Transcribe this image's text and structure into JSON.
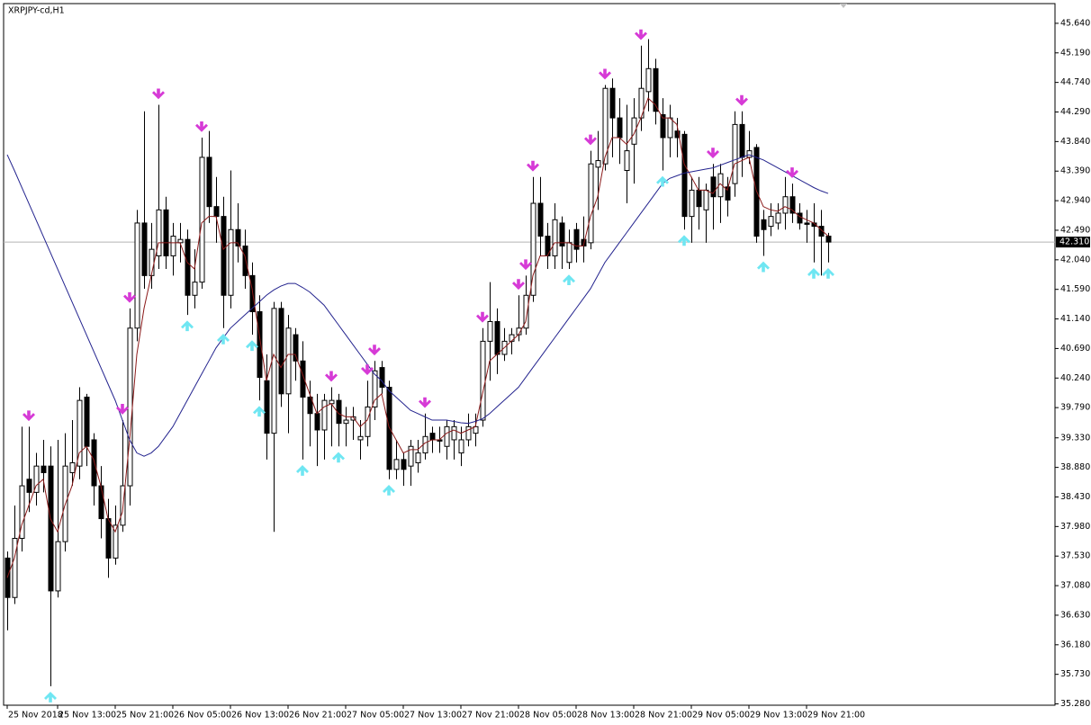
{
  "chart_data": {
    "type": "candlestick",
    "title": "XRPJPY-cd,H1",
    "xlim": [
      -0.5,
      145.5
    ],
    "ylim": [
      35.26,
      45.94
    ],
    "yticks": [
      {
        "value": 45.64,
        "label": "45.640"
      },
      {
        "value": 45.19,
        "label": "45.190"
      },
      {
        "value": 44.74,
        "label": "44.740"
      },
      {
        "value": 44.29,
        "label": "44.290"
      },
      {
        "value": 43.84,
        "label": "43.840"
      },
      {
        "value": 43.39,
        "label": "43.390"
      },
      {
        "value": 42.94,
        "label": "42.940"
      },
      {
        "value": 42.49,
        "label": "42.490"
      },
      {
        "value": 42.04,
        "label": "42.040"
      },
      {
        "value": 41.59,
        "label": "41.590"
      },
      {
        "value": 41.14,
        "label": "41.140"
      },
      {
        "value": 40.69,
        "label": "40.690"
      },
      {
        "value": 40.24,
        "label": "40.240"
      },
      {
        "value": 39.79,
        "label": "39.790"
      },
      {
        "value": 39.33,
        "label": "39.330"
      },
      {
        "value": 38.88,
        "label": "38.880"
      },
      {
        "value": 38.43,
        "label": "38.430"
      },
      {
        "value": 37.98,
        "label": "37.980"
      },
      {
        "value": 37.53,
        "label": "37.530"
      },
      {
        "value": 37.08,
        "label": "37.080"
      },
      {
        "value": 36.63,
        "label": "36.630"
      },
      {
        "value": 36.18,
        "label": "36.180"
      },
      {
        "value": 35.73,
        "label": "35.730"
      },
      {
        "value": 35.28,
        "label": "35.280"
      }
    ],
    "xticks": [
      {
        "value": 0,
        "label": "25 Nov 2018"
      },
      {
        "value": 7,
        "label": "25 Nov 13:00"
      },
      {
        "value": 15,
        "label": "25 Nov 21:00"
      },
      {
        "value": 23,
        "label": "26 Nov 05:00"
      },
      {
        "value": 31,
        "label": "26 Nov 13:00"
      },
      {
        "value": 39,
        "label": "26 Nov 21:00"
      },
      {
        "value": 47,
        "label": "27 Nov 05:00"
      },
      {
        "value": 55,
        "label": "27 Nov 13:00"
      },
      {
        "value": 63,
        "label": "27 Nov 21:00"
      },
      {
        "value": 71,
        "label": "28 Nov 05:00"
      },
      {
        "value": 79,
        "label": "28 Nov 13:00"
      },
      {
        "value": 87,
        "label": "28 Nov 21:00"
      },
      {
        "value": 95,
        "label": "29 Nov 05:00"
      },
      {
        "value": 103,
        "label": "29 Nov 13:00"
      },
      {
        "value": 111,
        "label": "29 Nov 21:00"
      }
    ],
    "current_price": {
      "value": 42.31,
      "label": "42.310"
    },
    "bull_color": "#ffffff",
    "bear_color": "#000000",
    "candles": [
      [
        37.5,
        37.6,
        36.4,
        36.9
      ],
      [
        36.9,
        38.3,
        36.8,
        37.8
      ],
      [
        37.8,
        39.5,
        37.6,
        38.6
      ],
      [
        38.7,
        39.5,
        38.2,
        38.5
      ],
      [
        38.5,
        39.1,
        38.3,
        38.9
      ],
      [
        38.9,
        39.3,
        38.5,
        38.8
      ],
      [
        38.9,
        39.2,
        35.55,
        37.0
      ],
      [
        37.0,
        39.3,
        36.9,
        37.75
      ],
      [
        37.75,
        39.4,
        37.6,
        38.9
      ],
      [
        38.8,
        39.6,
        38.6,
        38.95
      ],
      [
        38.9,
        40.1,
        38.7,
        39.9
      ],
      [
        39.95,
        40.0,
        38.9,
        39.2
      ],
      [
        39.3,
        39.4,
        38.3,
        38.6
      ],
      [
        38.6,
        38.9,
        37.8,
        38.1
      ],
      [
        38.1,
        38.4,
        37.2,
        37.5
      ],
      [
        37.5,
        38.3,
        37.4,
        38.0
      ],
      [
        38.0,
        39.6,
        37.9,
        38.6
      ],
      [
        38.6,
        41.3,
        38.3,
        41.0
      ],
      [
        41.0,
        42.8,
        40.8,
        42.6
      ],
      [
        42.6,
        44.3,
        41.6,
        41.8
      ],
      [
        41.8,
        42.6,
        41.6,
        42.2
      ],
      [
        42.1,
        44.4,
        41.9,
        42.8
      ],
      [
        42.8,
        43.0,
        41.9,
        42.1
      ],
      [
        42.1,
        42.6,
        41.8,
        42.4
      ],
      [
        42.3,
        42.6,
        42.0,
        42.35
      ],
      [
        42.35,
        42.5,
        41.2,
        41.5
      ],
      [
        41.5,
        42.2,
        41.3,
        41.7
      ],
      [
        41.7,
        43.9,
        41.6,
        43.6
      ],
      [
        43.6,
        44.0,
        42.6,
        42.85
      ],
      [
        42.85,
        43.3,
        42.3,
        42.7
      ],
      [
        42.7,
        43.0,
        41.0,
        41.5
      ],
      [
        41.5,
        43.4,
        41.3,
        42.5
      ],
      [
        42.5,
        42.9,
        42.0,
        42.25
      ],
      [
        42.25,
        42.5,
        41.6,
        41.8
      ],
      [
        41.8,
        42.0,
        40.9,
        41.25
      ],
      [
        41.25,
        41.5,
        39.9,
        40.25
      ],
      [
        40.2,
        40.6,
        39.0,
        39.4
      ],
      [
        39.4,
        41.4,
        37.9,
        41.3
      ],
      [
        41.3,
        41.4,
        39.8,
        40.0
      ],
      [
        40.0,
        41.2,
        39.4,
        41.0
      ],
      [
        40.9,
        41.0,
        40.2,
        40.5
      ],
      [
        40.5,
        40.8,
        39.0,
        39.95
      ],
      [
        39.95,
        40.2,
        39.2,
        39.7
      ],
      [
        39.7,
        40.0,
        38.9,
        39.45
      ],
      [
        39.45,
        40.0,
        39.0,
        39.9
      ],
      [
        39.85,
        40.1,
        39.2,
        39.9
      ],
      [
        39.9,
        40.0,
        39.2,
        39.55
      ],
      [
        39.55,
        39.8,
        39.2,
        39.6
      ],
      [
        39.6,
        39.8,
        39.3,
        39.65
      ],
      [
        39.3,
        39.6,
        39.0,
        39.35
      ],
      [
        39.35,
        40.2,
        39.2,
        39.8
      ],
      [
        39.8,
        40.5,
        39.6,
        40.35
      ],
      [
        40.4,
        40.5,
        40.0,
        40.1
      ],
      [
        40.1,
        40.2,
        38.7,
        38.85
      ],
      [
        38.85,
        39.3,
        38.7,
        39.0
      ],
      [
        39.0,
        39.1,
        38.6,
        38.85
      ],
      [
        38.9,
        39.3,
        38.6,
        39.2
      ],
      [
        38.95,
        39.3,
        38.8,
        39.1
      ],
      [
        39.1,
        39.7,
        39.0,
        39.35
      ],
      [
        39.4,
        39.5,
        39.1,
        39.3
      ],
      [
        39.3,
        39.5,
        39.1,
        39.28
      ],
      [
        39.2,
        39.6,
        39.0,
        39.5
      ],
      [
        39.3,
        39.6,
        39.0,
        39.5
      ],
      [
        39.1,
        39.5,
        38.9,
        39.3
      ],
      [
        39.3,
        39.7,
        39.2,
        39.5
      ],
      [
        39.4,
        39.7,
        39.2,
        39.5
      ],
      [
        39.6,
        41.0,
        39.5,
        40.8
      ],
      [
        40.8,
        41.7,
        40.2,
        41.1
      ],
      [
        41.1,
        41.3,
        40.3,
        40.6
      ],
      [
        40.6,
        41.0,
        40.5,
        40.8
      ],
      [
        40.8,
        41.0,
        40.6,
        40.9
      ],
      [
        40.9,
        41.5,
        40.8,
        41.0
      ],
      [
        41.0,
        41.8,
        40.9,
        41.5
      ],
      [
        41.5,
        43.3,
        41.4,
        42.9
      ],
      [
        42.9,
        43.3,
        42.1,
        42.4
      ],
      [
        42.4,
        42.6,
        41.9,
        42.1
      ],
      [
        42.1,
        42.9,
        41.9,
        42.65
      ],
      [
        42.6,
        42.7,
        41.9,
        42.25
      ],
      [
        42.0,
        42.5,
        41.9,
        42.3
      ],
      [
        42.5,
        42.6,
        42.0,
        42.2
      ],
      [
        42.35,
        42.7,
        42.0,
        42.25
      ],
      [
        42.3,
        43.7,
        42.2,
        43.5
      ],
      [
        43.45,
        44.0,
        42.8,
        43.55
      ],
      [
        43.5,
        44.7,
        43.4,
        44.65
      ],
      [
        44.65,
        44.8,
        43.6,
        44.2
      ],
      [
        44.2,
        44.5,
        43.5,
        43.9
      ],
      [
        43.4,
        44.4,
        42.9,
        43.7
      ],
      [
        43.8,
        44.5,
        43.2,
        44.2
      ],
      [
        44.2,
        45.3,
        44.0,
        44.65
      ],
      [
        44.6,
        45.4,
        44.3,
        44.95
      ],
      [
        44.95,
        45.1,
        44.1,
        44.3
      ],
      [
        44.25,
        44.5,
        43.4,
        43.9
      ],
      [
        43.9,
        44.4,
        43.6,
        44.2
      ],
      [
        44.0,
        44.2,
        43.6,
        43.9
      ],
      [
        43.95,
        44.0,
        42.5,
        42.7
      ],
      [
        42.7,
        43.3,
        42.3,
        43.1
      ],
      [
        43.1,
        43.3,
        42.5,
        42.85
      ],
      [
        42.8,
        43.2,
        42.3,
        43.1
      ],
      [
        43.3,
        43.5,
        42.5,
        43.0
      ],
      [
        43.0,
        43.5,
        42.6,
        43.35
      ],
      [
        43.15,
        43.3,
        42.7,
        42.95
      ],
      [
        43.2,
        44.3,
        43.0,
        44.1
      ],
      [
        44.1,
        44.3,
        43.3,
        43.6
      ],
      [
        43.6,
        44.0,
        43.5,
        43.7
      ],
      [
        43.75,
        43.8,
        42.3,
        42.4
      ],
      [
        42.65,
        42.8,
        42.1,
        42.5
      ],
      [
        42.55,
        42.9,
        42.4,
        42.7
      ],
      [
        42.6,
        42.9,
        42.5,
        42.75
      ],
      [
        42.75,
        43.3,
        42.5,
        43.0
      ],
      [
        43.0,
        43.2,
        42.6,
        42.75
      ],
      [
        42.75,
        42.9,
        42.5,
        42.6
      ],
      [
        42.6,
        42.8,
        42.3,
        42.58
      ],
      [
        42.6,
        42.9,
        42.0,
        42.55
      ],
      [
        42.55,
        42.8,
        41.8,
        42.4
      ],
      [
        42.4,
        42.45,
        42.0,
        42.31
      ]
    ],
    "series": [
      {
        "color": "#8b1a1a",
        "values": [
          37.2,
          37.5,
          38.0,
          38.3,
          38.6,
          38.7,
          38.1,
          37.9,
          38.3,
          38.6,
          39.1,
          39.2,
          39.0,
          38.6,
          38.1,
          37.9,
          38.2,
          39.3,
          40.6,
          41.3,
          41.8,
          42.3,
          42.3,
          42.3,
          42.3,
          42.0,
          41.9,
          42.6,
          42.7,
          42.7,
          42.2,
          42.3,
          42.3,
          42.1,
          41.6,
          40.9,
          40.2,
          40.6,
          40.4,
          40.6,
          40.6,
          40.3,
          40.0,
          39.7,
          39.8,
          39.85,
          39.7,
          39.65,
          39.65,
          39.5,
          39.6,
          39.9,
          40.0,
          39.5,
          39.3,
          39.1,
          39.15,
          39.15,
          39.25,
          39.3,
          39.3,
          39.4,
          39.45,
          39.4,
          39.45,
          39.5,
          40.0,
          40.5,
          40.6,
          40.7,
          40.8,
          40.9,
          41.1,
          41.8,
          42.1,
          42.1,
          42.3,
          42.3,
          42.3,
          42.25,
          42.25,
          42.7,
          43.0,
          43.6,
          43.9,
          43.9,
          43.8,
          43.95,
          44.2,
          44.5,
          44.4,
          44.2,
          44.2,
          44.1,
          43.5,
          43.3,
          43.1,
          43.1,
          43.05,
          43.2,
          43.1,
          43.5,
          43.55,
          43.6,
          43.1,
          42.85,
          42.8,
          42.78,
          42.85,
          42.8,
          42.7,
          42.65,
          42.6,
          42.5,
          42.4
        ]
      },
      {
        "color": "#23238e",
        "values": [
          43.64,
          43.4,
          43.15,
          42.9,
          42.65,
          42.4,
          42.15,
          41.9,
          41.65,
          41.4,
          41.15,
          40.9,
          40.65,
          40.4,
          40.15,
          39.9,
          39.6,
          39.3,
          39.1,
          39.05,
          39.1,
          39.2,
          39.35,
          39.5,
          39.7,
          39.9,
          40.1,
          40.3,
          40.5,
          40.7,
          40.85,
          41.0,
          41.1,
          41.2,
          41.3,
          41.4,
          41.5,
          41.58,
          41.64,
          41.68,
          41.68,
          41.62,
          41.55,
          41.45,
          41.35,
          41.2,
          41.05,
          40.9,
          40.75,
          40.6,
          40.45,
          40.3,
          40.2,
          40.05,
          39.95,
          39.85,
          39.75,
          39.7,
          39.65,
          39.6,
          39.6,
          39.6,
          39.58,
          39.56,
          39.55,
          39.58,
          39.62,
          39.7,
          39.8,
          39.9,
          40.0,
          40.1,
          40.25,
          40.4,
          40.55,
          40.7,
          40.85,
          41.0,
          41.15,
          41.3,
          41.45,
          41.6,
          41.8,
          42.0,
          42.15,
          42.3,
          42.45,
          42.6,
          42.75,
          42.9,
          43.05,
          43.2,
          43.28,
          43.32,
          43.36,
          43.38,
          43.4,
          43.42,
          43.44,
          43.48,
          43.52,
          43.56,
          43.6,
          43.64,
          43.6,
          43.56,
          43.5,
          43.44,
          43.38,
          43.32,
          43.26,
          43.2,
          43.14,
          43.09,
          43.05
        ]
      }
    ],
    "signals": {
      "down_color": "#d63ad6",
      "up_color": "#6fe6f2",
      "down": [
        3,
        16,
        17,
        21,
        27,
        45,
        50,
        51,
        58,
        66,
        71,
        72,
        73,
        81,
        83,
        88,
        98,
        102,
        109
      ],
      "up": [
        6,
        25,
        30,
        34,
        35,
        41,
        46,
        53,
        78,
        91,
        94,
        105,
        112,
        114
      ]
    }
  }
}
